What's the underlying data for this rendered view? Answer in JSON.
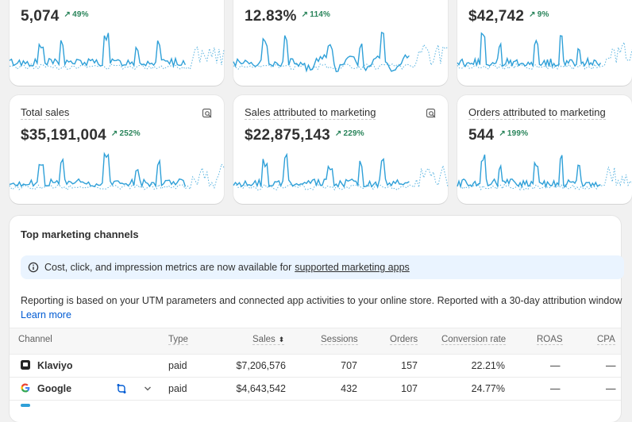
{
  "metrics_top": [
    {
      "value": "5,074",
      "delta": "49%"
    },
    {
      "value": "12.83%",
      "delta": "114%"
    },
    {
      "value": "$42,742",
      "delta": "9%"
    }
  ],
  "metrics_mid": [
    {
      "label": "Total sales",
      "value": "$35,191,004",
      "delta": "252%"
    },
    {
      "label": "Sales attributed to marketing",
      "value": "$22,875,143",
      "delta": "229%"
    },
    {
      "label": "Orders attributed to marketing",
      "value": "544",
      "delta": "199%"
    }
  ],
  "channels": {
    "title": "Top marketing channels",
    "banner_text": "Cost, click, and impression metrics are now available for",
    "banner_link": "supported marketing apps",
    "report_text": "Reporting is based on your UTM parameters and connected app activities to your online store. Reported with a 30-day attribution window",
    "learn_more": "Learn more",
    "columns": {
      "channel": "Channel",
      "type": "Type",
      "sales": "Sales",
      "sessions": "Sessions",
      "orders": "Orders",
      "conversion": "Conversion rate",
      "roas": "ROAS",
      "cpa": "CPA"
    },
    "rows": [
      {
        "name": "Klaviyo",
        "type": "paid",
        "sales": "$7,206,576",
        "sessions": "707",
        "orders": "157",
        "conversion": "22.21%",
        "roas": "—",
        "cpa": "—"
      },
      {
        "name": "Google",
        "type": "paid",
        "sales": "$4,643,542",
        "sessions": "432",
        "orders": "107",
        "conversion": "24.77%",
        "roas": "—",
        "cpa": "—"
      }
    ]
  },
  "colors": {
    "accent": "#2fa0d8",
    "positive": "#29845a",
    "link": "#005bd3",
    "banner_bg": "#eaf4ff"
  }
}
